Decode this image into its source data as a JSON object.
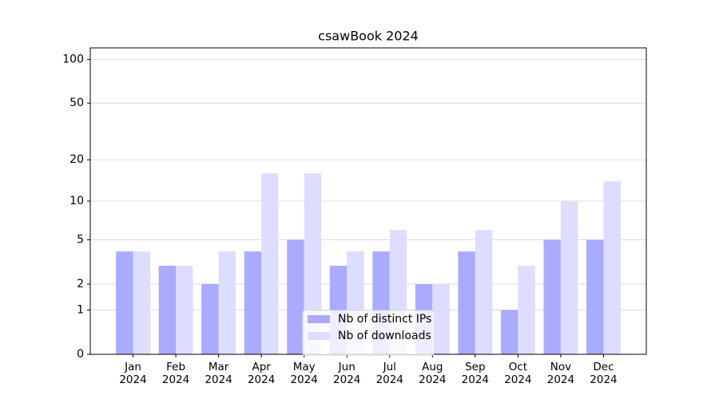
{
  "chart_data": {
    "type": "bar",
    "title": "csawBook 2024",
    "categories": [
      "Jan\n2024",
      "Feb\n2024",
      "Mar\n2024",
      "Apr\n2024",
      "May\n2024",
      "Jun\n2024",
      "Jul\n2024",
      "Aug\n2024",
      "Sep\n2024",
      "Oct\n2024",
      "Nov\n2024",
      "Dec\n2024"
    ],
    "series": [
      {
        "name": "Nb of distinct IPs",
        "color": "#aaaaff",
        "values": [
          4,
          3,
          2,
          4,
          5,
          3,
          4,
          2,
          4,
          1,
          5,
          5
        ]
      },
      {
        "name": "Nb of downloads",
        "color": "#ddddff",
        "values": [
          4,
          3,
          4,
          16,
          16,
          4,
          6,
          2,
          6,
          3,
          10,
          14
        ]
      }
    ],
    "yscale": "log1p",
    "ylim": [
      0,
      120
    ],
    "yticks": [
      0,
      1,
      2,
      5,
      10,
      20,
      50,
      100
    ],
    "grid": true,
    "legend": "lower center"
  }
}
